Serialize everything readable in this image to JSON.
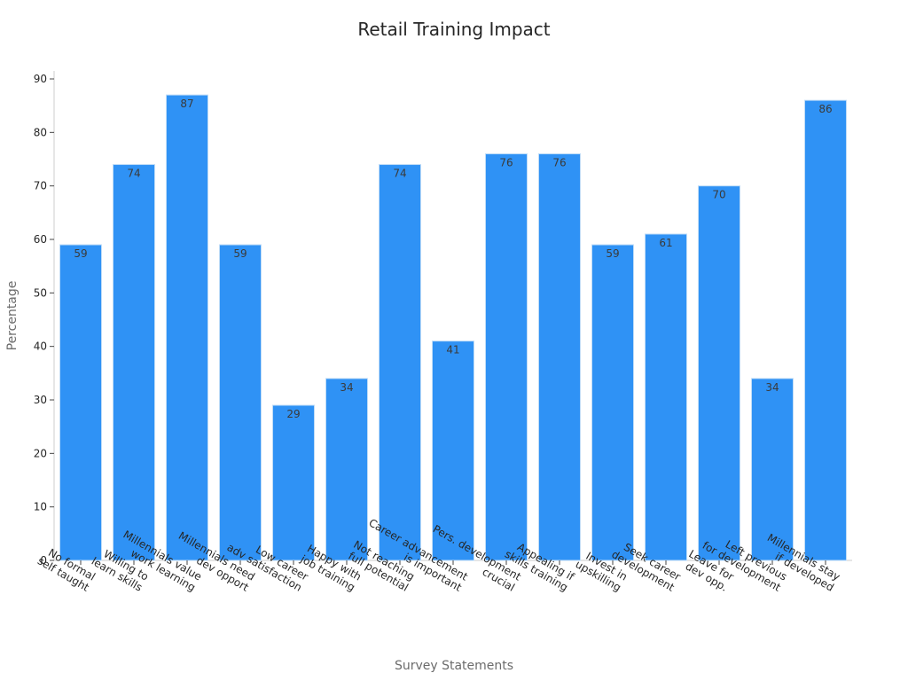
{
  "chart_data": {
    "type": "bar",
    "title": "Retail Training Impact",
    "xlabel": "Survey Statements",
    "ylabel": "Percentage",
    "ylim": [
      0,
      90
    ],
    "yticks": [
      0,
      10,
      20,
      30,
      40,
      50,
      60,
      70,
      80,
      90
    ],
    "grid": false,
    "legend": "none",
    "bar_color": "#2f92f5",
    "categories": [
      [
        "No formal",
        "self taught"
      ],
      [
        "Willing to",
        "learn skills"
      ],
      [
        "Millennials value",
        "work learning"
      ],
      [
        "Millennials need",
        "dev opport"
      ],
      [
        "Low career",
        "adv satisfaction"
      ],
      [
        "Happy with",
        "job training"
      ],
      [
        "Not reaching",
        "full potential"
      ],
      [
        "Career advancement",
        "is important"
      ],
      [
        "Pers. development",
        "crucial"
      ],
      [
        "Appealing if",
        "skills training"
      ],
      [
        "Invest in",
        "upskilling"
      ],
      [
        "Seek career",
        "development"
      ],
      [
        "Leave for",
        "dev opp."
      ],
      [
        "Left previous",
        "for development"
      ],
      [
        "Millennials stay",
        "if developed"
      ]
    ],
    "values": [
      59,
      74,
      87,
      59,
      29,
      34,
      74,
      41,
      76,
      76,
      59,
      61,
      70,
      34,
      86
    ]
  }
}
